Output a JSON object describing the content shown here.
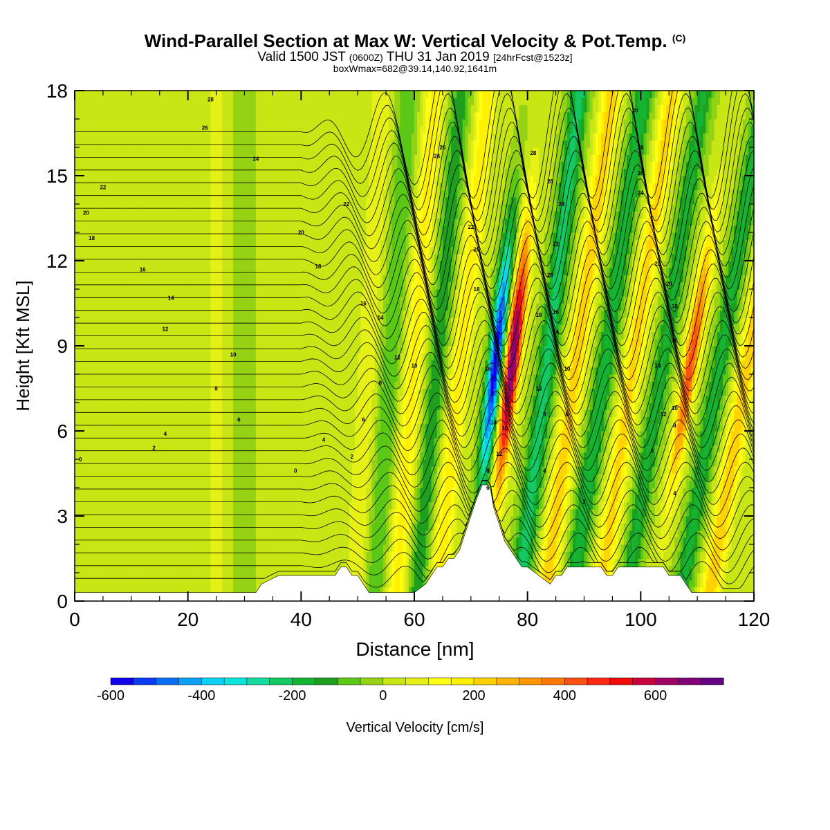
{
  "header": {
    "title": "Wind-Parallel Section at Max W: Vertical Velocity & Pot.Temp.",
    "title_unit": "(C)",
    "subtitle_valid": "Valid 1500 JST",
    "subtitle_utc": "(0600Z)",
    "subtitle_date": "THU 31 Jan 2019",
    "subtitle_fcst": "[24hrFcst@1523z]",
    "subtitle2": "boxWmax=682@39.14,140.92,1641m"
  },
  "chart_data": {
    "type": "heatmap",
    "xlabel": "Distance [nm]",
    "ylabel": "Height [Kft MSL]",
    "xlim": [
      0,
      120
    ],
    "ylim": [
      0,
      18
    ],
    "xticks": [
      0,
      20,
      40,
      60,
      80,
      100,
      120
    ],
    "yticks": [
      0,
      3,
      6,
      9,
      12,
      15,
      18
    ],
    "xtick_labels": [
      "0",
      "20",
      "40",
      "60",
      "80",
      "100",
      "120"
    ],
    "ytick_labels": [
      "0",
      "3",
      "6",
      "9",
      "12",
      "15",
      "18"
    ],
    "colorbar": {
      "label": "Vertical Velocity [cm/s]",
      "range": [
        -600,
        750
      ],
      "tick_values": [
        -600,
        -400,
        -200,
        0,
        200,
        400,
        600
      ],
      "tick_labels": [
        "-600",
        "-400",
        "-200",
        "0",
        "200",
        "400",
        "600"
      ],
      "colors": [
        "#1000ee",
        "#0a3cf5",
        "#0a6ff5",
        "#0aa0f5",
        "#0ad2f5",
        "#0ae6dc",
        "#14dca0",
        "#14c864",
        "#14b432",
        "#1ea01e",
        "#5ac814",
        "#96d214",
        "#c8e614",
        "#e6f014",
        "#ffff14",
        "#fff000",
        "#ffd200",
        "#ffb400",
        "#ff9600",
        "#ff7800",
        "#ff5014",
        "#ff2814",
        "#f00a0a",
        "#c8003c",
        "#a00064",
        "#820078",
        "#640082"
      ]
    },
    "terrain_profile": {
      "x": [
        0,
        32,
        33,
        36,
        40,
        44,
        46,
        47,
        48,
        49,
        50,
        51,
        52,
        60,
        62,
        63,
        64,
        65,
        66,
        67,
        68,
        69,
        70,
        71,
        72,
        73,
        73.5,
        74,
        74.5,
        75,
        75.5,
        76,
        77,
        78,
        79,
        80,
        82,
        84,
        85,
        86,
        87,
        88,
        89,
        90,
        91,
        92,
        93,
        94,
        95,
        96,
        97,
        98,
        99,
        100,
        101,
        102,
        103,
        104,
        105,
        106,
        107,
        108,
        109,
        110,
        111,
        112,
        113,
        114,
        115,
        116,
        117,
        118,
        119,
        120
      ],
      "height_kft": [
        0.3,
        0.3,
        0.6,
        0.9,
        0.9,
        0.9,
        0.9,
        1.2,
        1.2,
        0.9,
        0.9,
        0.6,
        0.3,
        0.3,
        0.6,
        0.9,
        1.2,
        1.2,
        1.5,
        1.5,
        1.8,
        2.4,
        3.0,
        3.6,
        4.1,
        4.1,
        3.9,
        3.3,
        3.0,
        2.7,
        2.4,
        2.1,
        1.8,
        1.5,
        1.2,
        1.2,
        0.9,
        0.6,
        0.9,
        0.9,
        1.2,
        1.2,
        1.2,
        1.2,
        1.2,
        1.2,
        1.2,
        0.9,
        0.9,
        1.2,
        1.2,
        1.2,
        1.2,
        1.2,
        1.2,
        1.2,
        1.2,
        1.2,
        0.9,
        0.9,
        0.9,
        0.6,
        0.3,
        0.3,
        0.3,
        0.3,
        0.3,
        0.3,
        0.3,
        0.3,
        0.3,
        0.3,
        0.3,
        0.3,
        0.3,
        0.3
      ]
    },
    "w_bands": [
      {
        "x": 25,
        "w": 60,
        "tilt": 0
      },
      {
        "x": 30,
        "w": -40,
        "tilt": 0
      },
      {
        "x": 45,
        "w": 30,
        "tilt": 0.3
      },
      {
        "x": 51,
        "w": 90,
        "tilt": 0.5
      },
      {
        "x": 55,
        "w": -110,
        "tilt": 0.6
      },
      {
        "x": 59,
        "w": 160,
        "tilt": 0.7
      },
      {
        "x": 63,
        "w": -150,
        "tilt": 0.8
      },
      {
        "x": 67,
        "w": 170,
        "tilt": 0.9
      },
      {
        "x": 73,
        "w": -600,
        "tilt": 1.0
      },
      {
        "x": 76,
        "w": 682,
        "tilt": 1.0
      },
      {
        "x": 82,
        "w": -240,
        "tilt": 1.1
      },
      {
        "x": 87,
        "w": 230,
        "tilt": 1.2
      },
      {
        "x": 92,
        "w": -200,
        "tilt": 1.3
      },
      {
        "x": 97,
        "w": 210,
        "tilt": 1.3
      },
      {
        "x": 102,
        "w": -170,
        "tilt": 1.4
      },
      {
        "x": 107,
        "w": 430,
        "tilt": 1.4
      },
      {
        "x": 112,
        "w": -180,
        "tilt": 1.5
      },
      {
        "x": 117,
        "w": 240,
        "tilt": 1.5
      }
    ],
    "isentrope_labels": [
      {
        "x": 1,
        "y": 5.0,
        "t": "0"
      },
      {
        "x": 14,
        "y": 5.4,
        "t": "2"
      },
      {
        "x": 16,
        "y": 5.9,
        "t": "4"
      },
      {
        "x": 29,
        "y": 6.4,
        "t": "6"
      },
      {
        "x": 25,
        "y": 7.5,
        "t": "8"
      },
      {
        "x": 28,
        "y": 8.7,
        "t": "10"
      },
      {
        "x": 16,
        "y": 9.6,
        "t": "12"
      },
      {
        "x": 17,
        "y": 10.7,
        "t": "14"
      },
      {
        "x": 12,
        "y": 11.7,
        "t": "16"
      },
      {
        "x": 3,
        "y": 12.8,
        "t": "18"
      },
      {
        "x": 2,
        "y": 13.7,
        "t": "20"
      },
      {
        "x": 5,
        "y": 14.6,
        "t": "22"
      },
      {
        "x": 32,
        "y": 15.6,
        "t": "24"
      },
      {
        "x": 23,
        "y": 16.7,
        "t": "26"
      },
      {
        "x": 24,
        "y": 17.7,
        "t": "28"
      },
      {
        "x": 40,
        "y": 13.0,
        "t": "20"
      },
      {
        "x": 43,
        "y": 11.8,
        "t": "18"
      },
      {
        "x": 48,
        "y": 14.0,
        "t": "22"
      },
      {
        "x": 51,
        "y": 10.5,
        "t": "16"
      },
      {
        "x": 54,
        "y": 10.0,
        "t": "14"
      },
      {
        "x": 57,
        "y": 8.6,
        "t": "12"
      },
      {
        "x": 60,
        "y": 8.3,
        "t": "10"
      },
      {
        "x": 54,
        "y": 7.7,
        "t": "8"
      },
      {
        "x": 51,
        "y": 6.4,
        "t": "6"
      },
      {
        "x": 44,
        "y": 5.7,
        "t": "4"
      },
      {
        "x": 49,
        "y": 5.1,
        "t": "2"
      },
      {
        "x": 39,
        "y": 4.6,
        "t": "0"
      },
      {
        "x": 65,
        "y": 16.0,
        "t": "26"
      },
      {
        "x": 64,
        "y": 15.7,
        "t": "24"
      },
      {
        "x": 70,
        "y": 13.2,
        "t": "22"
      },
      {
        "x": 71,
        "y": 12.4,
        "t": "20"
      },
      {
        "x": 71,
        "y": 11.0,
        "t": "18"
      },
      {
        "x": 73,
        "y": 8.2,
        "t": "16"
      },
      {
        "x": 74,
        "y": 6.3,
        "t": "14"
      },
      {
        "x": 76,
        "y": 6.1,
        "t": "10"
      },
      {
        "x": 75,
        "y": 5.2,
        "t": "12"
      },
      {
        "x": 73,
        "y": 4.6,
        "t": "8"
      },
      {
        "x": 73,
        "y": 4.0,
        "t": "6"
      },
      {
        "x": 81,
        "y": 15.8,
        "t": "28"
      },
      {
        "x": 84,
        "y": 14.8,
        "t": "26"
      },
      {
        "x": 86,
        "y": 14.0,
        "t": "24"
      },
      {
        "x": 85,
        "y": 12.6,
        "t": "22"
      },
      {
        "x": 84,
        "y": 11.5,
        "t": "20"
      },
      {
        "x": 82,
        "y": 10.1,
        "t": "18"
      },
      {
        "x": 85,
        "y": 10.2,
        "t": "16"
      },
      {
        "x": 85,
        "y": 9.5,
        "t": "14"
      },
      {
        "x": 82,
        "y": 7.5,
        "t": "12"
      },
      {
        "x": 87,
        "y": 8.2,
        "t": "10"
      },
      {
        "x": 83,
        "y": 6.6,
        "t": "8"
      },
      {
        "x": 87,
        "y": 6.6,
        "t": "6"
      },
      {
        "x": 83,
        "y": 4.6,
        "t": "4"
      },
      {
        "x": 90,
        "y": 3.5,
        "t": "2"
      },
      {
        "x": 99,
        "y": 17.3,
        "t": "30"
      },
      {
        "x": 100,
        "y": 16.0,
        "t": "28"
      },
      {
        "x": 100,
        "y": 15.1,
        "t": "26"
      },
      {
        "x": 100,
        "y": 14.4,
        "t": "24"
      },
      {
        "x": 103,
        "y": 11.9,
        "t": "22"
      },
      {
        "x": 105,
        "y": 11.2,
        "t": "20"
      },
      {
        "x": 106,
        "y": 10.4,
        "t": "18"
      },
      {
        "x": 106,
        "y": 9.2,
        "t": "16"
      },
      {
        "x": 103,
        "y": 8.3,
        "t": "14"
      },
      {
        "x": 106,
        "y": 6.8,
        "t": "10"
      },
      {
        "x": 104,
        "y": 6.6,
        "t": "12"
      },
      {
        "x": 106,
        "y": 6.2,
        "t": "8"
      },
      {
        "x": 102,
        "y": 5.3,
        "t": "6"
      },
      {
        "x": 106,
        "y": 3.8,
        "t": "4"
      }
    ]
  }
}
